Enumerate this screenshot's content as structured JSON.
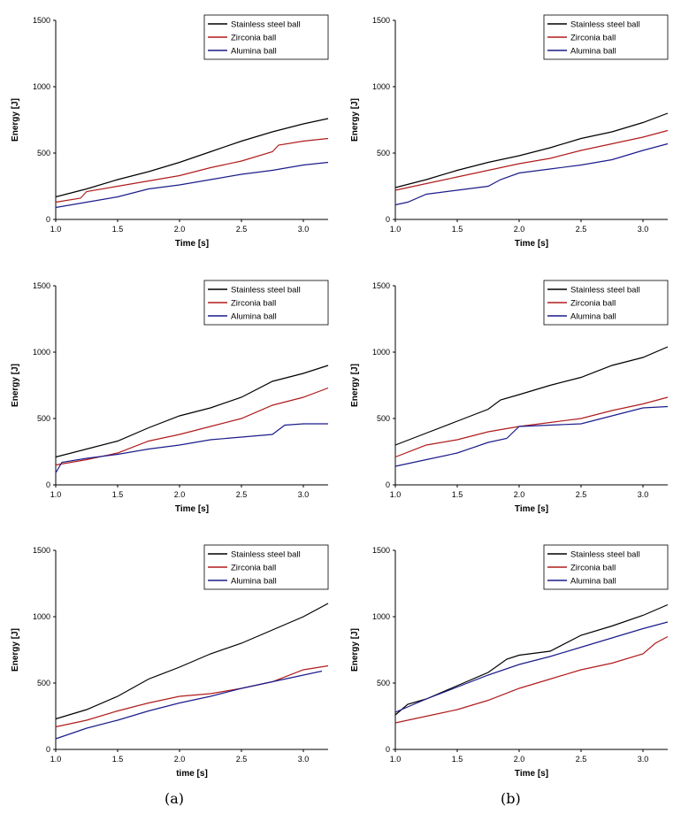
{
  "captions": [
    "(a)",
    "(b)"
  ],
  "colors": {
    "Stainless steel ball": "#000000",
    "Zirconia ball": "#b01c1c",
    "Alumina ball": "#1c1c8c"
  },
  "chart_data": [
    {
      "type": "line",
      "xlabel": "Time [s]",
      "ylabel": "Energy [J]",
      "xlim": [
        1.0,
        3.2
      ],
      "ylim": [
        0,
        1500
      ],
      "xticks": [
        1.0,
        1.5,
        2.0,
        2.5,
        3.0
      ],
      "yticks": [
        0,
        500,
        1000,
        1500
      ],
      "legend": "top-right",
      "series": [
        {
          "name": "Stainless steel ball",
          "points": [
            [
              1.0,
              170
            ],
            [
              1.25,
              230
            ],
            [
              1.5,
              300
            ],
            [
              1.75,
              360
            ],
            [
              2.0,
              430
            ],
            [
              2.25,
              510
            ],
            [
              2.5,
              590
            ],
            [
              2.75,
              660
            ],
            [
              3.0,
              720
            ],
            [
              3.2,
              760
            ]
          ]
        },
        {
          "name": "Zirconia ball",
          "points": [
            [
              1.0,
              130
            ],
            [
              1.2,
              160
            ],
            [
              1.25,
              210
            ],
            [
              1.5,
              250
            ],
            [
              1.75,
              290
            ],
            [
              2.0,
              330
            ],
            [
              2.25,
              390
            ],
            [
              2.5,
              440
            ],
            [
              2.75,
              510
            ],
            [
              2.8,
              560
            ],
            [
              3.0,
              590
            ],
            [
              3.2,
              610
            ]
          ]
        },
        {
          "name": "Alumina ball",
          "points": [
            [
              1.0,
              90
            ],
            [
              1.25,
              130
            ],
            [
              1.5,
              170
            ],
            [
              1.75,
              230
            ],
            [
              2.0,
              260
            ],
            [
              2.25,
              300
            ],
            [
              2.5,
              340
            ],
            [
              2.75,
              370
            ],
            [
              3.0,
              410
            ],
            [
              3.2,
              430
            ]
          ]
        }
      ]
    },
    {
      "type": "line",
      "xlabel": "Time [s]",
      "ylabel": "Energy [J]",
      "xlim": [
        1.0,
        3.2
      ],
      "ylim": [
        0,
        1500
      ],
      "xticks": [
        1.0,
        1.5,
        2.0,
        2.5,
        3.0
      ],
      "yticks": [
        0,
        500,
        1000,
        1500
      ],
      "legend": "top-right",
      "series": [
        {
          "name": "Stainless steel ball",
          "points": [
            [
              1.0,
              240
            ],
            [
              1.25,
              300
            ],
            [
              1.5,
              370
            ],
            [
              1.75,
              430
            ],
            [
              2.0,
              480
            ],
            [
              2.25,
              540
            ],
            [
              2.5,
              610
            ],
            [
              2.75,
              660
            ],
            [
              3.0,
              730
            ],
            [
              3.2,
              800
            ]
          ]
        },
        {
          "name": "Zirconia ball",
          "points": [
            [
              1.0,
              220
            ],
            [
              1.25,
              270
            ],
            [
              1.5,
              320
            ],
            [
              1.75,
              370
            ],
            [
              2.0,
              420
            ],
            [
              2.25,
              460
            ],
            [
              2.5,
              520
            ],
            [
              2.75,
              570
            ],
            [
              3.0,
              620
            ],
            [
              3.2,
              670
            ]
          ]
        },
        {
          "name": "Alumina ball",
          "points": [
            [
              1.0,
              110
            ],
            [
              1.1,
              130
            ],
            [
              1.25,
              190
            ],
            [
              1.5,
              220
            ],
            [
              1.75,
              250
            ],
            [
              1.85,
              300
            ],
            [
              2.0,
              350
            ],
            [
              2.25,
              380
            ],
            [
              2.5,
              410
            ],
            [
              2.75,
              450
            ],
            [
              3.0,
              520
            ],
            [
              3.2,
              570
            ]
          ]
        }
      ]
    },
    {
      "type": "line",
      "xlabel": "Time [s]",
      "ylabel": "Energy [J]",
      "xlim": [
        1.0,
        3.2
      ],
      "ylim": [
        0,
        1500
      ],
      "xticks": [
        1.0,
        1.5,
        2.0,
        2.5,
        3.0
      ],
      "yticks": [
        0,
        500,
        1000,
        1500
      ],
      "legend": "top-right",
      "series": [
        {
          "name": "Stainless steel ball",
          "points": [
            [
              1.0,
              210
            ],
            [
              1.25,
              270
            ],
            [
              1.5,
              330
            ],
            [
              1.75,
              430
            ],
            [
              2.0,
              520
            ],
            [
              2.25,
              580
            ],
            [
              2.5,
              660
            ],
            [
              2.75,
              780
            ],
            [
              3.0,
              840
            ],
            [
              3.2,
              900
            ]
          ]
        },
        {
          "name": "Zirconia ball",
          "points": [
            [
              1.0,
              150
            ],
            [
              1.25,
              190
            ],
            [
              1.5,
              240
            ],
            [
              1.75,
              330
            ],
            [
              2.0,
              380
            ],
            [
              2.25,
              440
            ],
            [
              2.5,
              500
            ],
            [
              2.75,
              600
            ],
            [
              3.0,
              660
            ],
            [
              3.2,
              730
            ]
          ]
        },
        {
          "name": "Alumina ball",
          "points": [
            [
              1.0,
              90
            ],
            [
              1.05,
              170
            ],
            [
              1.25,
              200
            ],
            [
              1.5,
              230
            ],
            [
              1.75,
              270
            ],
            [
              2.0,
              300
            ],
            [
              2.25,
              340
            ],
            [
              2.5,
              360
            ],
            [
              2.75,
              380
            ],
            [
              2.85,
              450
            ],
            [
              3.0,
              460
            ],
            [
              3.2,
              460
            ]
          ]
        }
      ]
    },
    {
      "type": "line",
      "xlabel": "Time [s]",
      "ylabel": "Energy [J]",
      "xlim": [
        1.0,
        3.2
      ],
      "ylim": [
        0,
        1500
      ],
      "xticks": [
        1.0,
        1.5,
        2.0,
        2.5,
        3.0
      ],
      "yticks": [
        0,
        500,
        1000,
        1500
      ],
      "legend": "top-right",
      "series": [
        {
          "name": "Stainless steel ball",
          "points": [
            [
              1.0,
              300
            ],
            [
              1.25,
              390
            ],
            [
              1.5,
              480
            ],
            [
              1.75,
              570
            ],
            [
              1.85,
              640
            ],
            [
              2.0,
              680
            ],
            [
              2.25,
              750
            ],
            [
              2.5,
              810
            ],
            [
              2.75,
              900
            ],
            [
              3.0,
              960
            ],
            [
              3.2,
              1040
            ]
          ]
        },
        {
          "name": "Zirconia ball",
          "points": [
            [
              1.0,
              210
            ],
            [
              1.25,
              300
            ],
            [
              1.5,
              340
            ],
            [
              1.75,
              400
            ],
            [
              2.0,
              440
            ],
            [
              2.25,
              470
            ],
            [
              2.5,
              500
            ],
            [
              2.75,
              560
            ],
            [
              3.0,
              610
            ],
            [
              3.2,
              660
            ]
          ]
        },
        {
          "name": "Alumina ball",
          "points": [
            [
              1.0,
              140
            ],
            [
              1.25,
              190
            ],
            [
              1.5,
              240
            ],
            [
              1.75,
              320
            ],
            [
              1.9,
              350
            ],
            [
              2.0,
              440
            ],
            [
              2.25,
              450
            ],
            [
              2.5,
              460
            ],
            [
              2.75,
              520
            ],
            [
              3.0,
              580
            ],
            [
              3.2,
              590
            ]
          ]
        }
      ]
    },
    {
      "type": "line",
      "xlabel": "time [s]",
      "ylabel": "Energy [J]",
      "xlim": [
        1.0,
        3.2
      ],
      "ylim": [
        0,
        1500
      ],
      "xticks": [
        1.0,
        1.5,
        2.0,
        2.5,
        3.0
      ],
      "yticks": [
        0,
        500,
        1000,
        1500
      ],
      "legend": "top-right",
      "series": [
        {
          "name": "Stainless steel ball",
          "points": [
            [
              1.0,
              230
            ],
            [
              1.25,
              300
            ],
            [
              1.5,
              400
            ],
            [
              1.75,
              530
            ],
            [
              2.0,
              620
            ],
            [
              2.25,
              720
            ],
            [
              2.5,
              800
            ],
            [
              2.75,
              900
            ],
            [
              3.0,
              1000
            ],
            [
              3.2,
              1100
            ]
          ]
        },
        {
          "name": "Zirconia ball",
          "points": [
            [
              1.0,
              170
            ],
            [
              1.25,
              220
            ],
            [
              1.5,
              290
            ],
            [
              1.75,
              350
            ],
            [
              2.0,
              400
            ],
            [
              2.25,
              420
            ],
            [
              2.5,
              460
            ],
            [
              2.75,
              510
            ],
            [
              3.0,
              600
            ],
            [
              3.2,
              630
            ]
          ]
        },
        {
          "name": "Alumina ball",
          "points": [
            [
              1.0,
              80
            ],
            [
              1.25,
              160
            ],
            [
              1.5,
              220
            ],
            [
              1.75,
              290
            ],
            [
              2.0,
              350
            ],
            [
              2.25,
              400
            ],
            [
              2.5,
              460
            ],
            [
              2.75,
              510
            ],
            [
              3.0,
              560
            ],
            [
              3.15,
              590
            ]
          ]
        }
      ]
    },
    {
      "type": "line",
      "xlabel": "Time [s]",
      "ylabel": "Energy [J]",
      "xlim": [
        1.0,
        3.2
      ],
      "ylim": [
        0,
        1500
      ],
      "xticks": [
        1.0,
        1.5,
        2.0,
        2.5,
        3.0
      ],
      "yticks": [
        0,
        500,
        1000,
        1500
      ],
      "legend": "top-right",
      "series": [
        {
          "name": "Stainless steel ball",
          "points": [
            [
              1.0,
              260
            ],
            [
              1.1,
              340
            ],
            [
              1.25,
              380
            ],
            [
              1.5,
              480
            ],
            [
              1.75,
              580
            ],
            [
              1.9,
              680
            ],
            [
              2.0,
              710
            ],
            [
              2.25,
              740
            ],
            [
              2.5,
              860
            ],
            [
              2.75,
              930
            ],
            [
              3.0,
              1010
            ],
            [
              3.2,
              1090
            ]
          ]
        },
        {
          "name": "Zirconia ball",
          "points": [
            [
              1.0,
              200
            ],
            [
              1.25,
              250
            ],
            [
              1.5,
              300
            ],
            [
              1.75,
              370
            ],
            [
              2.0,
              460
            ],
            [
              2.25,
              530
            ],
            [
              2.5,
              600
            ],
            [
              2.75,
              650
            ],
            [
              3.0,
              720
            ],
            [
              3.1,
              800
            ],
            [
              3.2,
              850
            ]
          ]
        },
        {
          "name": "Alumina ball",
          "points": [
            [
              1.0,
              280
            ],
            [
              1.25,
              380
            ],
            [
              1.5,
              470
            ],
            [
              1.75,
              560
            ],
            [
              2.0,
              640
            ],
            [
              2.25,
              700
            ],
            [
              2.5,
              770
            ],
            [
              2.75,
              840
            ],
            [
              3.0,
              910
            ],
            [
              3.2,
              960
            ]
          ]
        }
      ]
    }
  ]
}
